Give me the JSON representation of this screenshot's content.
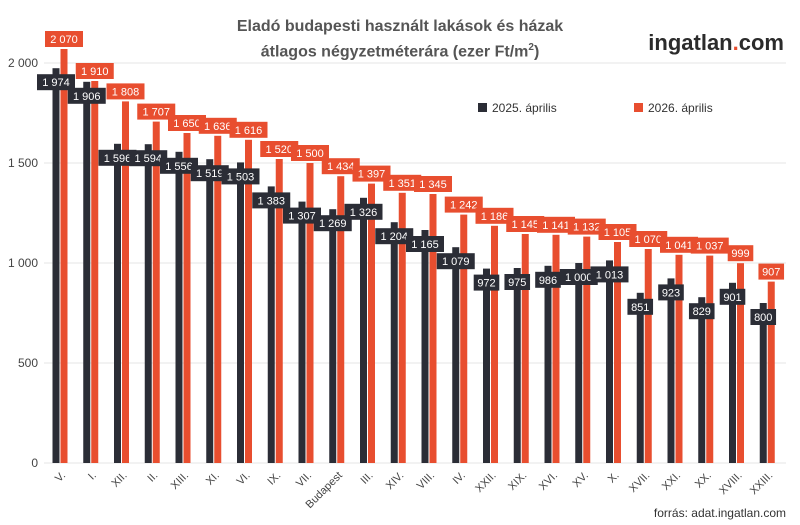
{
  "title_line1": "Eladó budapesti használt lakások és házak",
  "title_line2_prefix": "átlagos négyzetméterára (ezer Ft/m",
  "title_line2_sup": "2",
  "title_line2_suffix": ")",
  "brand": {
    "name": "ingatlan",
    "dot": ".",
    "tld": "com"
  },
  "source": "forrás: adat.ingatlan.com",
  "colors": {
    "series_2025": "#2b2d36",
    "series_2026": "#e84e2f",
    "grid": "#e6e6e6",
    "axis_text": "#444444"
  },
  "chart_data": {
    "type": "bar",
    "ylim": [
      0,
      2000
    ],
    "yticks": [
      0,
      500,
      1000,
      1500,
      2000
    ],
    "ytick_labels": [
      "0",
      "500",
      "1 000",
      "1 500",
      "2 000"
    ],
    "grid": true,
    "legend_position": "top-right",
    "categories": [
      "V.",
      "I.",
      "XII.",
      "II.",
      "XIII.",
      "XI.",
      "VI.",
      "IX.",
      "VII.",
      "Budapest",
      "III.",
      "XIV.",
      "VIII.",
      "IV.",
      "XXII.",
      "XIX.",
      "XVI.",
      "XV.",
      "X.",
      "XVII.",
      "XXI.",
      "XX.",
      "XVIII.",
      "XXIII."
    ],
    "series": [
      {
        "name": "2025. április",
        "values": [
          1974,
          1906,
          1596,
          1594,
          1556,
          1519,
          1503,
          1383,
          1307,
          1269,
          1326,
          1204,
          1165,
          1079,
          972,
          975,
          986,
          1000,
          1013,
          851,
          923,
          829,
          901,
          800
        ],
        "labels": [
          "1 974",
          "1 906",
          "1 596",
          "1 594",
          "1 556",
          "1 519",
          "1 503",
          "1 383",
          "1 307",
          "1 269",
          "1 326",
          "1 204",
          "1 165",
          "1 079",
          "972",
          "975",
          "986",
          "1 000",
          "1 013",
          "851",
          "923",
          "829",
          "901",
          "800"
        ]
      },
      {
        "name": "2026. április",
        "values": [
          2070,
          1910,
          1808,
          1707,
          1650,
          1636,
          1616,
          1520,
          1500,
          1434,
          1397,
          1351,
          1345,
          1242,
          1186,
          1145,
          1141,
          1132,
          1105,
          1070,
          1041,
          1037,
          999,
          907
        ],
        "labels": [
          "2 070",
          "1 910",
          "1 808",
          "1 707",
          "1 650",
          "1 636",
          "1 616",
          "1 520",
          "1 500",
          "1 434",
          "1 397",
          "1 351",
          "1 345",
          "1 242",
          "1 186",
          "1 145",
          "1 141",
          "1 132",
          "1 105",
          "1 070",
          "1 041",
          "1 037",
          "999",
          "907"
        ]
      }
    ]
  }
}
